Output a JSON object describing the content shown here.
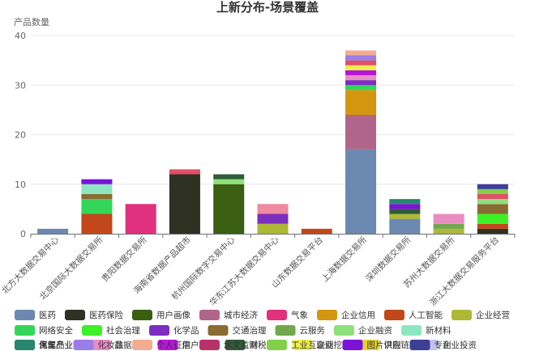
{
  "chart_data": {
    "type": "bar",
    "stacked": true,
    "title": "上新分布-场景覆盖",
    "ylabel": "产品数量",
    "xlabel": "",
    "ylim": [
      0,
      40
    ],
    "yticks": [
      0,
      10,
      20,
      30,
      40
    ],
    "grid": true,
    "legend_position": "bottom",
    "categories": [
      "北方大数据交易中心",
      "北京国际大数据交易所",
      "贵阳数据交易所",
      "海南省数据产品超市",
      "杭州国际数字交易中心",
      "华东江苏大数据交易中心",
      "山东数据交易平台",
      "上海数据交易所",
      "深圳数据交易所",
      "苏州大数据交易所",
      "浙江大数据交易服务平台"
    ],
    "series": [
      {
        "name": "医药",
        "color": "#6b88b0",
        "values": [
          1,
          0,
          0,
          0,
          0,
          0,
          0,
          17,
          3,
          0,
          0
        ]
      },
      {
        "name": "医药保险",
        "color": "#2f3222",
        "values": [
          0,
          0,
          0,
          12,
          0,
          0,
          0,
          0,
          0,
          0,
          1
        ]
      },
      {
        "name": "用户画像",
        "color": "#3a5e12",
        "values": [
          0,
          0,
          0,
          0,
          10,
          0,
          0,
          0,
          0,
          0,
          0
        ]
      },
      {
        "name": "城市经济",
        "color": "#b0658a",
        "values": [
          0,
          0,
          0,
          0,
          0,
          0,
          0,
          7,
          0,
          0,
          0
        ]
      },
      {
        "name": "气象",
        "color": "#e0307e",
        "values": [
          0,
          0,
          6,
          0,
          0,
          0,
          0,
          0,
          0,
          0,
          0
        ]
      },
      {
        "name": "企业信用",
        "color": "#d4960f",
        "values": [
          0,
          0,
          0,
          0,
          0,
          0,
          0,
          5,
          0,
          0,
          0
        ]
      },
      {
        "name": "人工智能",
        "color": "#c2471a",
        "values": [
          0,
          4,
          0,
          0,
          0,
          0,
          1,
          0,
          0,
          0,
          1
        ]
      },
      {
        "name": "企业经营",
        "color": "#adb835",
        "values": [
          0,
          0,
          0,
          0,
          0,
          2,
          0,
          0,
          1,
          1,
          0
        ]
      },
      {
        "name": "网络安全",
        "color": "#33d659",
        "values": [
          0,
          3,
          0,
          0,
          0,
          0,
          0,
          1,
          0,
          0,
          0
        ]
      },
      {
        "name": "社会治理",
        "color": "#3ef028",
        "values": [
          0,
          0,
          0,
          0,
          0,
          0,
          0,
          0,
          0,
          0,
          2
        ]
      },
      {
        "name": "化学品",
        "color": "#7c2ec0",
        "values": [
          0,
          0,
          0,
          0,
          0,
          2,
          0,
          1,
          0,
          0,
          0
        ]
      },
      {
        "name": "交通治理",
        "color": "#8a6b32",
        "values": [
          0,
          1,
          0,
          0,
          0,
          0,
          0,
          0,
          0,
          0,
          2
        ]
      },
      {
        "name": "云服务",
        "color": "#70a84b",
        "values": [
          0,
          0,
          0,
          0,
          0,
          0,
          0,
          0,
          0,
          1,
          0
        ]
      },
      {
        "name": "企业融资",
        "color": "#8ee07a",
        "values": [
          0,
          0,
          0,
          0,
          1,
          0,
          0,
          0,
          0,
          0,
          1
        ]
      },
      {
        "name": "新材料",
        "color": "#8ee6c0",
        "values": [
          0,
          2,
          0,
          0,
          0,
          0,
          0,
          0,
          0,
          0,
          0
        ]
      },
      {
        "name": "化工产业链",
        "color": "#ef8aa0",
        "values": [
          0,
          0,
          0,
          0,
          0,
          2,
          0,
          0,
          0,
          0,
          0
        ]
      },
      {
        "name": "数据合规",
        "color": "#ea8dc4",
        "values": [
          0,
          0,
          0,
          0,
          0,
          0,
          0,
          1,
          0,
          2,
          0
        ]
      },
      {
        "name": "用户核验",
        "color": "#b417d6",
        "values": [
          0,
          0,
          0,
          0,
          0,
          0,
          0,
          1,
          0,
          0,
          0
        ]
      },
      {
        "name": "财税风控",
        "color": "#2f5c36",
        "values": [
          0,
          0,
          0,
          0,
          1,
          0,
          0,
          0,
          1,
          0,
          0
        ]
      },
      {
        "name": "企业挖掘",
        "color": "#eef04a",
        "values": [
          0,
          0,
          0,
          0,
          0,
          0,
          0,
          1,
          0,
          0,
          0
        ]
      },
      {
        "name": "供应链",
        "color": "#e3d32e",
        "values": [
          0,
          0,
          0,
          0,
          0,
          0,
          0,
          0,
          0,
          0,
          0
        ]
      },
      {
        "name": "企业投资",
        "color": "#c2c2f0",
        "values": [
          0,
          0,
          0,
          0,
          0,
          0,
          0,
          0,
          0,
          0,
          0
        ]
      },
      {
        "name": "保健品",
        "color": "#e05068",
        "values": [
          0,
          0,
          0,
          1,
          0,
          0,
          0,
          1,
          0,
          0,
          1
        ]
      },
      {
        "name": "化妆品",
        "color": "#9a7ee8",
        "values": [
          0,
          0,
          0,
          0,
          0,
          0,
          0,
          1,
          0,
          0,
          0
        ]
      },
      {
        "name": "个人征信",
        "color": "#f2ac92",
        "values": [
          0,
          0,
          0,
          0,
          0,
          0,
          0,
          1,
          0,
          0,
          0
        ]
      },
      {
        "name": "水文监测",
        "color": "#b8326a",
        "values": [
          0,
          0,
          0,
          0,
          0,
          0,
          0,
          0,
          0,
          0,
          0
        ]
      },
      {
        "name": "工业互联网",
        "color": "#84cf4a",
        "values": [
          0,
          0,
          0,
          0,
          0,
          0,
          0,
          0,
          0,
          0,
          1
        ]
      },
      {
        "name": "图片识别",
        "color": "#7a12d8",
        "values": [
          0,
          1,
          0,
          0,
          0,
          0,
          0,
          0,
          1,
          0,
          0
        ]
      },
      {
        "name": "专利",
        "color": "#3c3f96",
        "values": [
          0,
          0,
          0,
          0,
          0,
          0,
          0,
          0,
          0,
          0,
          1
        ]
      },
      {
        "name": "汽车产业",
        "color": "#26876e",
        "values": [
          0,
          0,
          0,
          0,
          0,
          0,
          0,
          0,
          1,
          0,
          0
        ]
      }
    ]
  }
}
